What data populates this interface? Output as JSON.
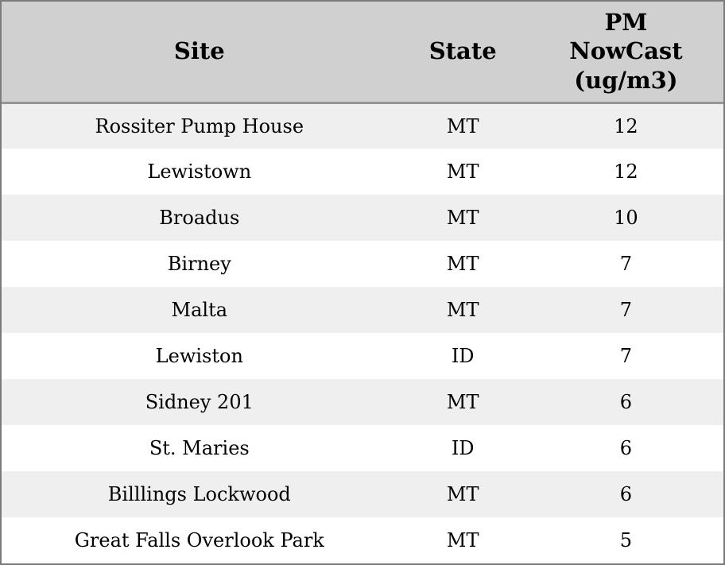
{
  "chart_data": {
    "type": "table",
    "title": "",
    "columns": [
      "Site",
      "State",
      "PM NowCast (ug/m3)"
    ],
    "header_lines": [
      "Site",
      "State",
      "PM\nNowCast\n(ug/m3)"
    ],
    "rows": [
      [
        "Rossiter Pump House",
        "MT",
        12
      ],
      [
        "Lewistown",
        "MT",
        12
      ],
      [
        "Broadus",
        "MT",
        10
      ],
      [
        "Birney",
        "MT",
        7
      ],
      [
        "Malta",
        "MT",
        7
      ],
      [
        "Lewiston",
        "ID",
        7
      ],
      [
        "Sidney 201",
        "MT",
        6
      ],
      [
        "St. Maries",
        "ID",
        6
      ],
      [
        "Billlings Lockwood",
        "MT",
        6
      ],
      [
        "Great Falls Overlook Park",
        "MT",
        5
      ]
    ],
    "layout_hints": {
      "row_striping": "odd rows shaded",
      "alignment": "all cells centered",
      "header_wraps": true
    }
  },
  "colors": {
    "header_bg": "#d0d0d0",
    "header_rule": "#969696",
    "outer_border": "#7b7b7b",
    "row_alt_bg": "#efefef",
    "row_bg": "#ffffff",
    "text": "#000000"
  }
}
